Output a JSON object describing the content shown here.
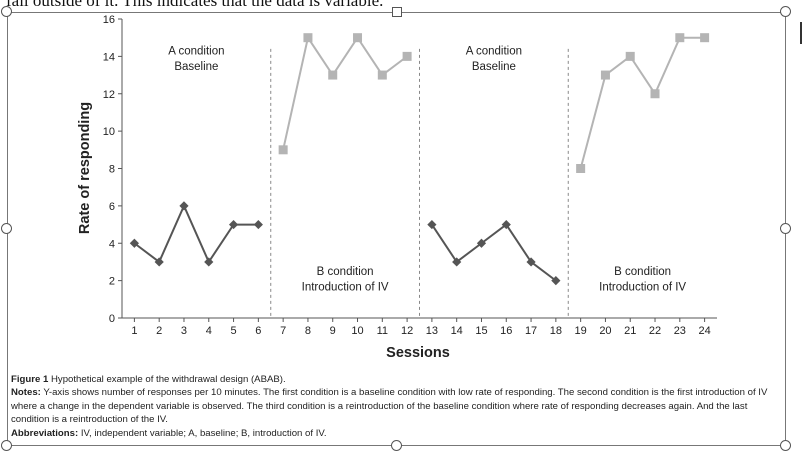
{
  "top_text": "fall outside of it. This indicates that the data is variable.",
  "chart_data": {
    "type": "line",
    "title": "",
    "xlabel": "Sessions",
    "ylabel": "Rate of responding",
    "xlim": [
      0.5,
      24.5
    ],
    "ylim": [
      0,
      16
    ],
    "yticks": [
      0,
      2,
      4,
      6,
      8,
      10,
      12,
      14,
      16
    ],
    "xticks": [
      1,
      2,
      3,
      4,
      5,
      6,
      7,
      8,
      9,
      10,
      11,
      12,
      13,
      14,
      15,
      16,
      17,
      18,
      19,
      20,
      21,
      22,
      23,
      24
    ],
    "grid": false,
    "legend": "none",
    "series": [
      {
        "phase": "A1",
        "marker": "diamond",
        "color": "#555555",
        "x": [
          1,
          2,
          3,
          4,
          5,
          6
        ],
        "y": [
          4,
          3,
          6,
          3,
          5,
          5
        ]
      },
      {
        "phase": "B1",
        "marker": "square",
        "color": "#b4b4b4",
        "x": [
          7,
          8,
          9,
          10,
          11,
          12
        ],
        "y": [
          9,
          15,
          13,
          15,
          13,
          14
        ]
      },
      {
        "phase": "A2",
        "marker": "diamond",
        "color": "#555555",
        "x": [
          13,
          14,
          15,
          16,
          17,
          18
        ],
        "y": [
          5,
          3,
          4,
          5,
          3,
          2
        ]
      },
      {
        "phase": "B2",
        "marker": "square",
        "color": "#b4b4b4",
        "x": [
          19,
          20,
          21,
          22,
          23,
          24
        ],
        "y": [
          8,
          13,
          14,
          12,
          15,
          15
        ]
      }
    ],
    "phase_lines_after_session": [
      6.5,
      12.5,
      18.5
    ],
    "annotations": [
      {
        "lines": [
          "A condition",
          "Baseline"
        ],
        "x": 3.5,
        "y": 14.1
      },
      {
        "lines": [
          "B condition",
          "Introduction of IV"
        ],
        "x": 9.5,
        "y": 2.3
      },
      {
        "lines": [
          "A condition",
          "Baseline"
        ],
        "x": 15.5,
        "y": 14.1
      },
      {
        "lines": [
          "B condition",
          "Introduction of IV"
        ],
        "x": 21.5,
        "y": 2.3
      }
    ]
  },
  "caption": {
    "figure_label": "Figure 1",
    "figure_text": "Hypothetical example of the withdrawal design (ABAB).",
    "notes_label": "Notes:",
    "notes_text": "Y-axis shows number of responses per 10 minutes. The first condition is a baseline condition with low rate of responding. The second condition is the first introduction of IV where a change in the dependent variable is observed. The third condition is a reintroduction of the baseline condition where rate of responding decreases again. And the last condition is a reintroduction of the IV.",
    "abbreviations_label": "Abbreviations:",
    "abbreviations_text": "IV, independent variable; A, baseline; B, introduction of IV."
  }
}
